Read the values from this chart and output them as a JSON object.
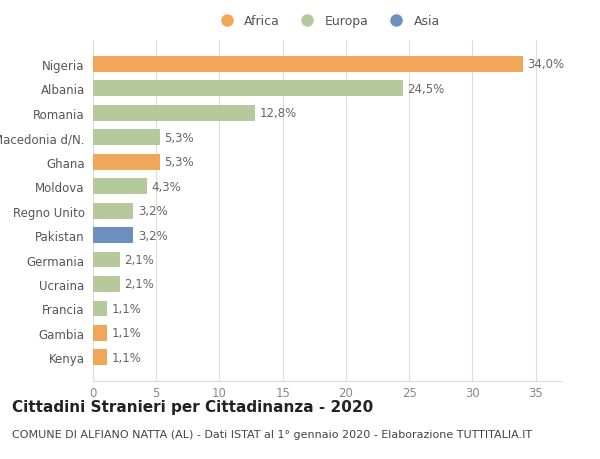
{
  "countries": [
    "Kenya",
    "Gambia",
    "Francia",
    "Ucraina",
    "Germania",
    "Pakistan",
    "Regno Unito",
    "Moldova",
    "Ghana",
    "Macedonia d/N.",
    "Romania",
    "Albania",
    "Nigeria"
  ],
  "values": [
    1.1,
    1.1,
    1.1,
    2.1,
    2.1,
    3.2,
    3.2,
    4.3,
    5.3,
    5.3,
    12.8,
    24.5,
    34.0
  ],
  "labels": [
    "1,1%",
    "1,1%",
    "1,1%",
    "2,1%",
    "2,1%",
    "3,2%",
    "3,2%",
    "4,3%",
    "5,3%",
    "5,3%",
    "12,8%",
    "24,5%",
    "34,0%"
  ],
  "bar_colors": [
    "#F2A65A",
    "#F2A65A",
    "#B5C99A",
    "#B5C99A",
    "#B5C99A",
    "#6B8FBF",
    "#B5C99A",
    "#B5C99A",
    "#F2A65A",
    "#B5C99A",
    "#B5C99A",
    "#B5C99A",
    "#F2A65A"
  ],
  "xlim": [
    0,
    37
  ],
  "xticks": [
    0,
    5,
    10,
    15,
    20,
    25,
    30,
    35
  ],
  "title": "Cittadini Stranieri per Cittadinanza - 2020",
  "subtitle": "COMUNE DI ALFIANO NATTA (AL) - Dati ISTAT al 1° gennaio 2020 - Elaborazione TUTTITALIA.IT",
  "legend_labels": [
    "Africa",
    "Europa",
    "Asia"
  ],
  "legend_colors": [
    "#F2A65A",
    "#B5C99A",
    "#6B8FBF"
  ],
  "bg_color": "#ffffff",
  "grid_color": "#dddddd",
  "bar_height": 0.65,
  "label_fontsize": 8.5,
  "tick_fontsize": 8.5,
  "title_fontsize": 11,
  "subtitle_fontsize": 8
}
